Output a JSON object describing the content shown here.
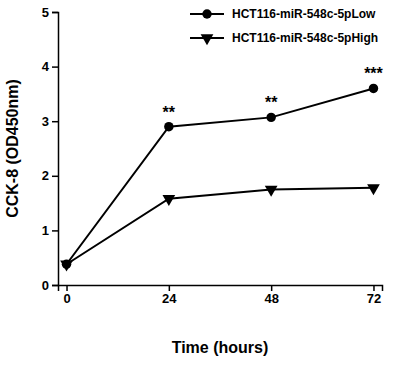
{
  "chart_data": {
    "type": "line",
    "x_label": "Time (hours)",
    "y_label": "CCK-8 (OD450nm)",
    "x": [
      0,
      24,
      48,
      72
    ],
    "series": [
      {
        "name": "HCT116-miR-548c-5pLow",
        "color": "#000000",
        "marker": "circle",
        "line_style": "solid",
        "values": [
          0.38,
          2.9,
          3.07,
          3.6
        ]
      },
      {
        "name": "HCT116-miR-548c-5pHigh",
        "color": "#000000",
        "marker": "triangle-down",
        "line_style": "solid",
        "values": [
          0.38,
          1.58,
          1.75,
          1.78
        ]
      }
    ],
    "annotations": [
      {
        "text": "**",
        "x": 24
      },
      {
        "text": "**",
        "x": 48
      },
      {
        "text": "***",
        "x": 72
      }
    ],
    "xlim": [
      -2,
      74
    ],
    "xticks": [
      0,
      24,
      48,
      72
    ],
    "ylim": [
      0,
      5
    ],
    "yticks": [
      0,
      1,
      2,
      3,
      4,
      5
    ],
    "grid": false,
    "legend": "top-right"
  }
}
